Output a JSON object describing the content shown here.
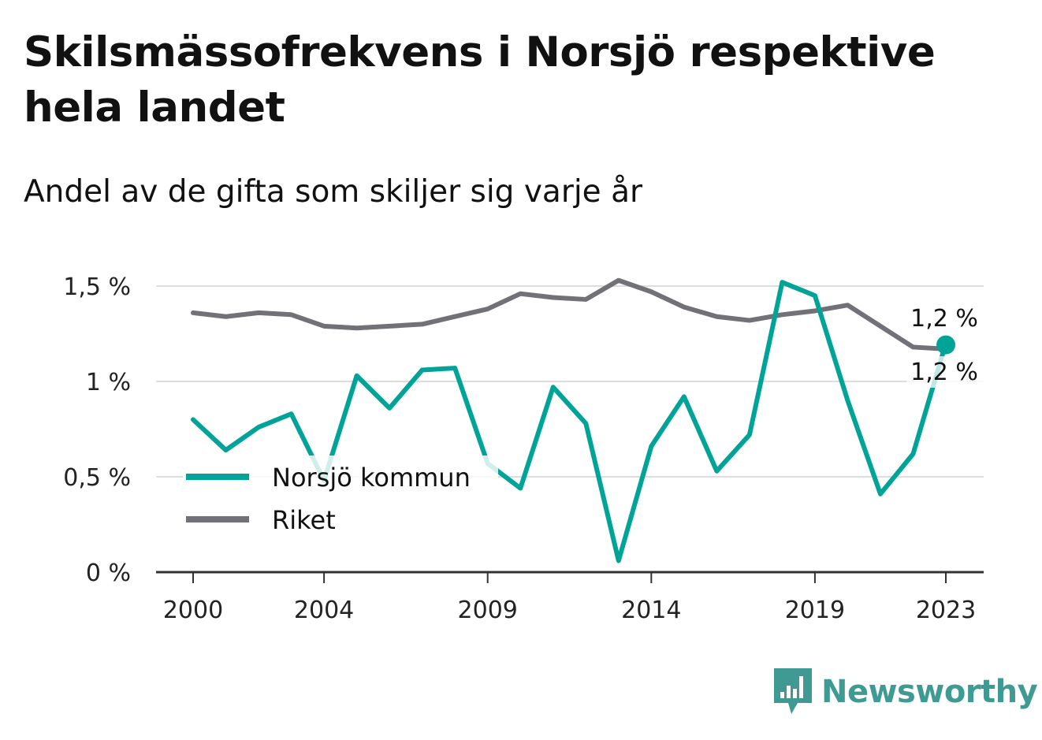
{
  "title": "Skilsmässofrekvens i Norsjö respektive hela landet",
  "subtitle": "Andel av de gifta som skiljer sig varje år",
  "brand": {
    "name": "Newsworthy",
    "icon": "bar-chart-speech-bubble-icon",
    "color": "#3f9a94"
  },
  "chart_data": {
    "type": "line",
    "x": [
      2000,
      2001,
      2002,
      2003,
      2004,
      2005,
      2006,
      2007,
      2008,
      2009,
      2010,
      2011,
      2012,
      2013,
      2014,
      2015,
      2016,
      2017,
      2018,
      2019,
      2020,
      2021,
      2022,
      2023
    ],
    "x_ticks": [
      2000,
      2004,
      2009,
      2014,
      2019,
      2023
    ],
    "y_ticks": [
      {
        "value": 0,
        "label": "0 %"
      },
      {
        "value": 0.5,
        "label": "0,5 %"
      },
      {
        "value": 1,
        "label": "1 %"
      },
      {
        "value": 1.5,
        "label": "1,5 %"
      }
    ],
    "ylim": [
      0,
      1.5
    ],
    "grid": true,
    "legend_position": "bottom-left",
    "series": [
      {
        "name": "Norsjö kommun",
        "color": "#00a398",
        "values": [
          0.8,
          0.64,
          0.76,
          0.83,
          0.48,
          1.03,
          0.86,
          1.06,
          1.07,
          0.57,
          0.44,
          0.97,
          0.78,
          0.06,
          0.66,
          0.92,
          0.53,
          0.72,
          1.52,
          1.45,
          0.9,
          0.41,
          0.62,
          1.2
        ],
        "end_label": "1,2 %"
      },
      {
        "name": "Riket",
        "color": "#737178",
        "values": [
          1.36,
          1.34,
          1.36,
          1.35,
          1.29,
          1.28,
          1.29,
          1.3,
          1.34,
          1.38,
          1.46,
          1.44,
          1.43,
          1.53,
          1.47,
          1.39,
          1.34,
          1.32,
          1.35,
          1.37,
          1.4,
          1.29,
          1.18,
          1.17
        ],
        "end_label": "1,2 %"
      }
    ]
  }
}
